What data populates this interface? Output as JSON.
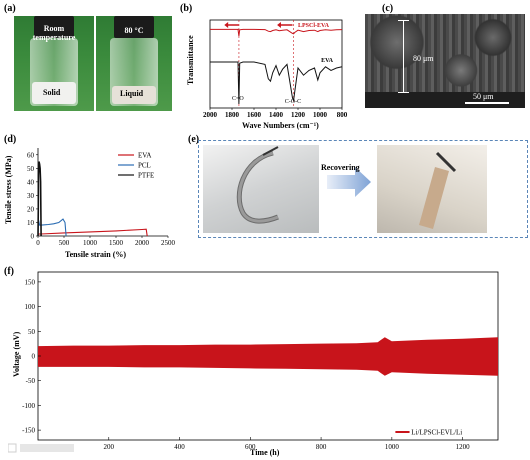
{
  "panels": {
    "a": "(a)",
    "b": "(b)",
    "c": "(c)",
    "d": "(d)",
    "e": "(e)",
    "f": "(f)"
  },
  "panel_a": {
    "left_cap": "Room\ntemperature",
    "left_state": "Solid",
    "right_cap": "80 °C",
    "right_state": "Liquid"
  },
  "panel_b": {
    "xlabel": "Wave Numbers (cm⁻¹)",
    "ylabel": "Transmittance",
    "series_top": "LPSCl-EVA",
    "series_bottom": "EVA",
    "ann_co": "C=O",
    "ann_coc": "C-O-C",
    "xticks": [
      "2000",
      "1800",
      "1600",
      "1400",
      "1200",
      "1000",
      "800"
    ]
  },
  "panel_c": {
    "thickness": "80 μm",
    "scale": "50 μm"
  },
  "panel_d": {
    "xlabel": "Tensile strain (%)",
    "ylabel": "Tensile stress (MPa)",
    "xticks": [
      "0",
      "500",
      "1000",
      "1500",
      "2000",
      "2500"
    ],
    "yticks": [
      "0",
      "10",
      "20",
      "30",
      "40",
      "50",
      "60"
    ],
    "legend": [
      "EVA",
      "PCL",
      "PTFE"
    ]
  },
  "panel_e": {
    "arrow_label": "Recovering"
  },
  "panel_f": {
    "xlabel": "Time (h)",
    "ylabel": "Voltage (mV)",
    "xticks": [
      "200",
      "400",
      "600",
      "800",
      "1000",
      "1200"
    ],
    "yticks": [
      "150",
      "100",
      "50",
      "0",
      "-50",
      "-100",
      "-150"
    ],
    "legend": "Li/LPSCl-EVL/Li"
  },
  "colors": {
    "red": "#c8141b",
    "blue": "#2a6cb3",
    "black": "#111111"
  },
  "chart_data": [
    {
      "type": "line",
      "title": "",
      "xlabel": "Wave Numbers (cm⁻¹)",
      "ylabel": "Transmittance",
      "xlim": [
        2000,
        800
      ],
      "series": [
        {
          "name": "LPSCl-EVA",
          "color": "#c8141b",
          "x": [
            2000,
            1900,
            1800,
            1745,
            1737,
            1730,
            1700,
            1600,
            1500,
            1470,
            1450,
            1430,
            1400,
            1370,
            1340,
            1300,
            1250,
            1240,
            1230,
            1200,
            1150,
            1100,
            1050,
            1020,
            1000,
            950,
            900,
            850,
            800
          ],
          "y": [
            0.92,
            0.92,
            0.92,
            0.92,
            0.55,
            0.9,
            0.92,
            0.92,
            0.91,
            0.82,
            0.8,
            0.86,
            0.9,
            0.85,
            0.88,
            0.9,
            0.7,
            0.68,
            0.75,
            0.88,
            0.8,
            0.86,
            0.88,
            0.8,
            0.86,
            0.9,
            0.88,
            0.9,
            0.91
          ]
        },
        {
          "name": "EVA",
          "color": "#111111",
          "x": [
            2000,
            1900,
            1800,
            1745,
            1737,
            1730,
            1700,
            1600,
            1500,
            1470,
            1450,
            1430,
            1400,
            1370,
            1340,
            1300,
            1250,
            1240,
            1230,
            1200,
            1150,
            1100,
            1050,
            1020,
            1000,
            950,
            900,
            850,
            800
          ],
          "y": [
            0.8,
            0.8,
            0.8,
            0.8,
            0.1,
            0.78,
            0.8,
            0.8,
            0.76,
            0.52,
            0.48,
            0.62,
            0.74,
            0.58,
            0.68,
            0.76,
            0.2,
            0.16,
            0.3,
            0.7,
            0.58,
            0.66,
            0.7,
            0.5,
            0.62,
            0.72,
            0.66,
            0.7,
            0.72
          ]
        }
      ]
    },
    {
      "type": "line",
      "title": "",
      "xlabel": "Tensile strain (%)",
      "ylabel": "Tensile stress (MPa)",
      "xlim": [
        0,
        2500
      ],
      "ylim": [
        0,
        65
      ],
      "series": [
        {
          "name": "EVA",
          "color": "#c8141b",
          "x": [
            0,
            5,
            50,
            500,
            1000,
            1500,
            2000,
            2080,
            2100
          ],
          "y": [
            0,
            1.5,
            1.5,
            2.3,
            3.0,
            3.8,
            4.8,
            5.0,
            0
          ]
        },
        {
          "name": "PCL",
          "color": "#2a6cb3",
          "x": [
            0,
            10,
            30,
            100,
            200,
            300,
            400,
            480,
            520,
            540
          ],
          "y": [
            0,
            12,
            8,
            8.2,
            8.5,
            9,
            10,
            12.5,
            10,
            0
          ]
        },
        {
          "name": "PTFE",
          "color": "#111111",
          "x": [
            0,
            5,
            10,
            20,
            30,
            40,
            50,
            60
          ],
          "y": [
            0,
            20,
            45,
            55,
            53,
            50,
            40,
            0
          ]
        }
      ]
    },
    {
      "type": "line",
      "title": "",
      "xlabel": "Time (h)",
      "ylabel": "Voltage (mV)",
      "xlim": [
        0,
        1300
      ],
      "ylim": [
        -170,
        170
      ],
      "series": [
        {
          "name": "Li/LPSCl-EVL/Li",
          "color": "#c8141b",
          "x": [
            0,
            100,
            200,
            300,
            400,
            500,
            600,
            700,
            800,
            900,
            960,
            980,
            1000,
            1100,
            1200,
            1300
          ],
          "upper": [
            20,
            21,
            21,
            22,
            22,
            23,
            23,
            24,
            25,
            26,
            28,
            38,
            30,
            33,
            35,
            38
          ],
          "lower": [
            -22,
            -22,
            -22,
            -23,
            -23,
            -24,
            -25,
            -26,
            -27,
            -28,
            -30,
            -40,
            -33,
            -36,
            -38,
            -40
          ]
        }
      ]
    }
  ]
}
